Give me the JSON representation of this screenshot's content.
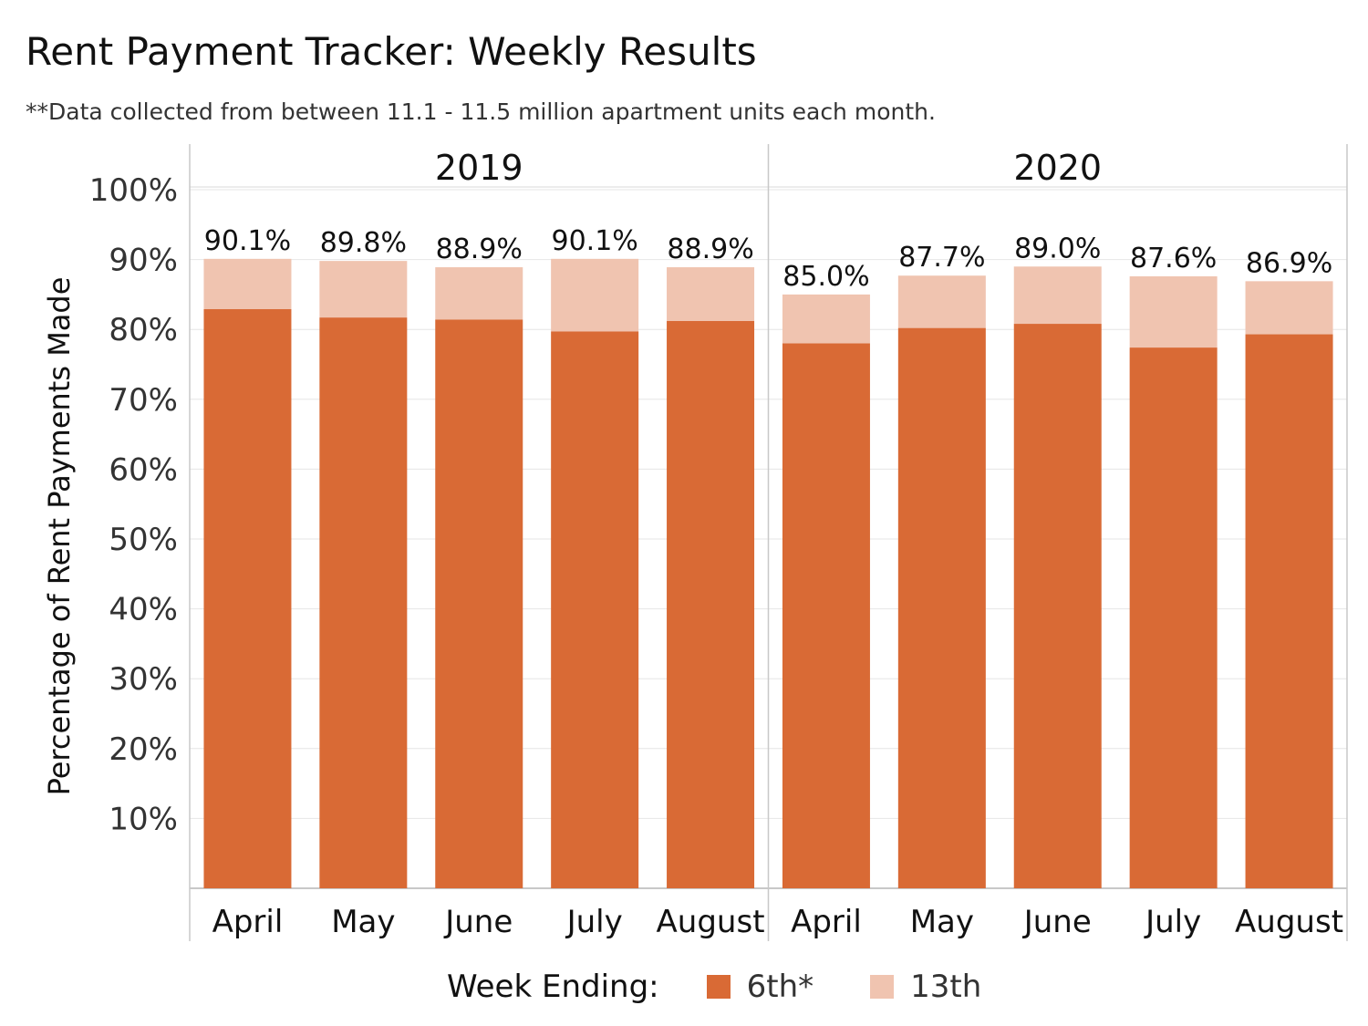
{
  "title": "Rent Payment Tracker: Weekly Results",
  "subtitle": "**Data collected from between 11.1 - 11.5 million apartment units each month.",
  "legend": {
    "title": "Week Ending:",
    "items": [
      {
        "label": "6th*",
        "color": "#D96A35"
      },
      {
        "label": "13th",
        "color": "#F0C4B0"
      }
    ]
  },
  "colors": {
    "grid": "#e6e6e6",
    "axis": "#c8c8c8",
    "text": "#111111"
  },
  "chart_data": {
    "type": "bar",
    "stacked": true,
    "ylabel": "Percentage of Rent Payments Made",
    "xlabel": "",
    "ylim": [
      0,
      100
    ],
    "yticks": [
      10,
      20,
      30,
      40,
      50,
      60,
      70,
      80,
      90,
      100
    ],
    "ytick_labels": [
      "10%",
      "20%",
      "30%",
      "40%",
      "50%",
      "60%",
      "70%",
      "80%",
      "90%",
      "100%"
    ],
    "grid": true,
    "legend_position": "bottom",
    "panels": [
      {
        "year": "2019",
        "categories": [
          "April",
          "May",
          "June",
          "July",
          "August"
        ],
        "series": [
          {
            "name": "6th*",
            "values": [
              82.9,
              81.7,
              81.4,
              79.7,
              81.2
            ]
          },
          {
            "name": "13th",
            "values": [
              7.2,
              8.1,
              7.5,
              10.4,
              7.7
            ]
          }
        ],
        "totals": [
          90.1,
          89.8,
          88.9,
          90.1,
          88.9
        ],
        "total_labels": [
          "90.1%",
          "89.8%",
          "88.9%",
          "90.1%",
          "88.9%"
        ]
      },
      {
        "year": "2020",
        "categories": [
          "April",
          "May",
          "June",
          "July",
          "August"
        ],
        "series": [
          {
            "name": "6th*",
            "values": [
              78.0,
              80.2,
              80.8,
              77.4,
              79.3
            ]
          },
          {
            "name": "13th",
            "values": [
              7.0,
              7.5,
              8.2,
              10.2,
              7.6
            ]
          }
        ],
        "totals": [
          85.0,
          87.7,
          89.0,
          87.6,
          86.9
        ],
        "total_labels": [
          "85.0%",
          "87.7%",
          "89.0%",
          "87.6%",
          "86.9%"
        ]
      }
    ]
  }
}
